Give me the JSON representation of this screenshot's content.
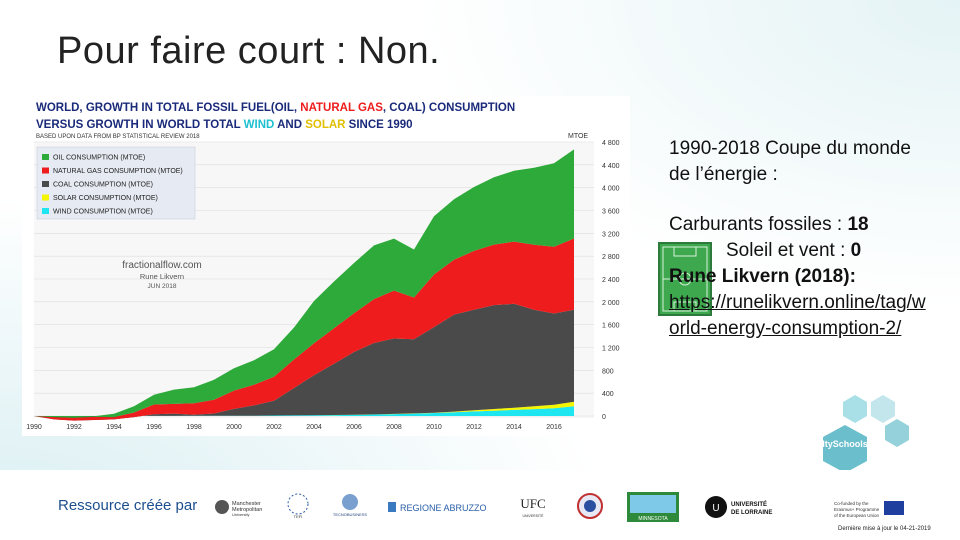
{
  "slide": {
    "title": "Pour faire court : Non.",
    "paragraph1": "1990-2018 Coupe du monde de l’énergie :",
    "fossil_label": "Carburants fossiles : ",
    "fossil_value": "18",
    "sunwind_label": "Soleil et vent : ",
    "sunwind_value": "0",
    "author": "Rune Likvern (2018):",
    "link": "https://runelikvern.online/tag/world-energy-consumption-2/",
    "footer_label": "Ressource créée par",
    "last_updated": "Dernière mise à jour le 04-21-2019",
    "logos": [
      "Manchester Metropolitan University",
      "TEFI",
      "TECNOBUSINESS",
      "REGIONE ABRUZZO",
      "UFC",
      "UBFC",
      "MINNESOTA",
      "UNIVERSITÉ DE LORRAINE",
      "Co-funded by the Erasmus+ Programme of the European Union",
      "ItySchools"
    ],
    "hex_logo_text": "ItySchools"
  },
  "chart_data": {
    "type": "area",
    "title_line1_parts": [
      "WORLD, GROWTH IN TOTAL FOSSIL FUEL",
      "(OIL, ",
      "NATURAL GAS",
      ", COAL)",
      " CONSUMPTION"
    ],
    "title_line2_parts": [
      "VERSUS GROWTH IN WORLD TOTAL ",
      "WIND",
      " AND ",
      "SOLAR",
      " SINCE 1990"
    ],
    "subtitle": "BASED UPON DATA FROM BP STATISTICAL REVIEW 2018",
    "unit_label": "MTOE",
    "watermark": [
      "fractionalflow.com",
      "Rune Likvern",
      "JUN 2018"
    ],
    "legend_position": "top-left",
    "colors": {
      "oil": "#2eaa3a",
      "gas": "#ee1c1c",
      "coal": "#4a4a4a",
      "solar": "#f5f500",
      "wind": "#1ee6f0"
    },
    "ylim": [
      0,
      4800
    ],
    "yticks": [
      "0",
      "400",
      "800",
      "1 200",
      "1 600",
      "2 000",
      "2 400",
      "2 800",
      "3 200",
      "3 600",
      "4 000",
      "4 400",
      "4 800"
    ],
    "xticks": [
      "1990",
      "1992",
      "1994",
      "1996",
      "1998",
      "2000",
      "2002",
      "2004",
      "2006",
      "2008",
      "2010",
      "2012",
      "2014",
      "2016"
    ],
    "x": [
      1990,
      1991,
      1992,
      1993,
      1994,
      1995,
      1996,
      1997,
      1998,
      1999,
      2000,
      2001,
      2002,
      2003,
      2004,
      2005,
      2006,
      2007,
      2008,
      2009,
      2010,
      2011,
      2012,
      2013,
      2014,
      2015,
      2016,
      2017
    ],
    "series": [
      {
        "name": "WIND CONSUMPTION (MTOE)",
        "key": "wind",
        "values": [
          0,
          0,
          0,
          0,
          1,
          1,
          2,
          2,
          3,
          4,
          5,
          6,
          8,
          10,
          13,
          16,
          20,
          26,
          34,
          42,
          52,
          66,
          80,
          93,
          106,
          120,
          136,
          170
        ]
      },
      {
        "name": "SOLAR CONSUMPTION (MTOE)",
        "key": "solar",
        "values": [
          0,
          0,
          0,
          0,
          0,
          0,
          0,
          0,
          0,
          0,
          0,
          0,
          0,
          0,
          1,
          1,
          1,
          2,
          3,
          4,
          6,
          11,
          22,
          30,
          40,
          50,
          60,
          80
        ]
      },
      {
        "name": "COAL CONSUMPTION (MTOE)",
        "key": "coal",
        "values": [
          0,
          -60,
          -80,
          -70,
          -60,
          -20,
          30,
          40,
          20,
          40,
          120,
          180,
          260,
          480,
          700,
          900,
          1100,
          1250,
          1320,
          1300,
          1500,
          1700,
          1760,
          1820,
          1820,
          1690,
          1600,
          1610
        ]
      },
      {
        "name": "NATURAL GAS CONSUMPTION (MTOE)",
        "key": "gas",
        "values": [
          0,
          40,
          50,
          55,
          40,
          80,
          170,
          170,
          200,
          240,
          320,
          360,
          420,
          500,
          560,
          620,
          680,
          770,
          840,
          730,
          920,
          960,
          1030,
          1060,
          1090,
          1140,
          1170,
          1250
        ]
      },
      {
        "name": "OIL CONSUMPTION (MTOE)",
        "key": "oil",
        "values": [
          0,
          20,
          30,
          10,
          60,
          110,
          170,
          250,
          280,
          350,
          390,
          430,
          480,
          560,
          740,
          820,
          880,
          940,
          910,
          840,
          1020,
          1060,
          1120,
          1180,
          1240,
          1350,
          1460,
          1560
        ]
      }
    ]
  }
}
